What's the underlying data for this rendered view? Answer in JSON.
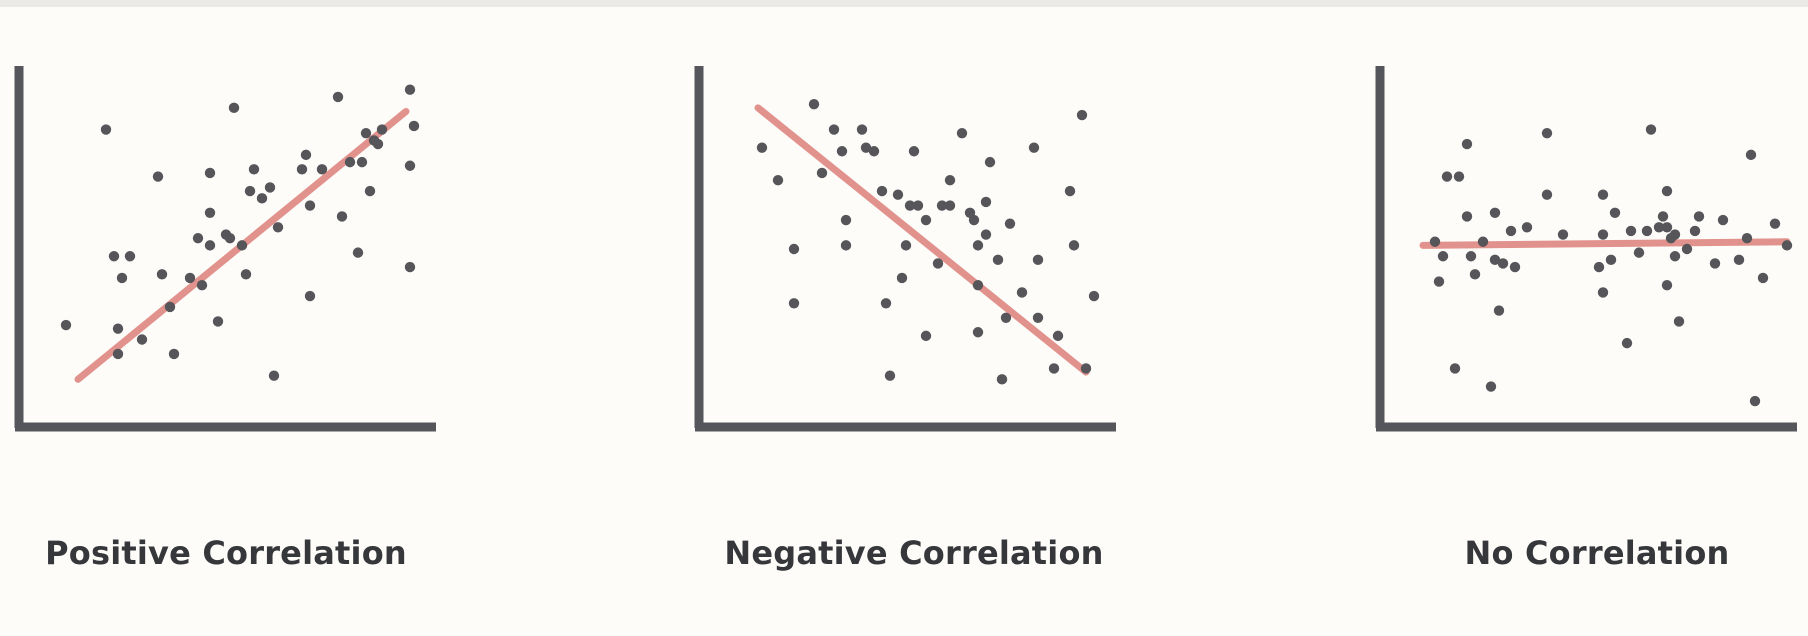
{
  "colors": {
    "axis": "#55565c",
    "point": "#56565a",
    "trend": "#dd8079",
    "background": "#fdfcf9"
  },
  "chart_data": [
    {
      "type": "scatter",
      "title": "Positive Correlation",
      "xlabel": "",
      "ylabel": "",
      "xlim": [
        0,
        100
      ],
      "ylim": [
        0,
        100
      ],
      "grid": false,
      "trend_line": {
        "from": [
          11,
          14
        ],
        "to": [
          93,
          88
        ]
      },
      "points": [
        [
          8,
          29
        ],
        [
          18,
          83
        ],
        [
          20,
          48
        ],
        [
          21,
          28
        ],
        [
          21,
          21
        ],
        [
          22,
          42
        ],
        [
          24,
          48
        ],
        [
          27,
          25
        ],
        [
          31,
          70
        ],
        [
          32,
          43
        ],
        [
          34,
          34
        ],
        [
          35,
          21
        ],
        [
          39,
          42
        ],
        [
          41,
          53
        ],
        [
          42,
          40
        ],
        [
          44,
          60
        ],
        [
          44,
          71
        ],
        [
          44,
          51
        ],
        [
          46,
          30
        ],
        [
          48,
          54
        ],
        [
          49,
          53
        ],
        [
          50,
          89
        ],
        [
          52,
          51
        ],
        [
          53,
          43
        ],
        [
          54,
          66
        ],
        [
          55,
          72
        ],
        [
          57,
          64
        ],
        [
          59,
          67
        ],
        [
          60,
          15
        ],
        [
          61,
          56
        ],
        [
          67,
          72
        ],
        [
          68,
          76
        ],
        [
          69,
          37
        ],
        [
          69,
          62
        ],
        [
          72,
          72
        ],
        [
          76,
          92
        ],
        [
          77,
          59
        ],
        [
          79,
          74
        ],
        [
          81,
          49
        ],
        [
          82,
          74
        ],
        [
          83,
          82
        ],
        [
          84,
          66
        ],
        [
          85,
          80
        ],
        [
          86,
          79
        ],
        [
          87,
          83
        ],
        [
          94,
          73
        ],
        [
          94,
          45
        ],
        [
          94,
          94
        ],
        [
          95,
          84
        ]
      ]
    },
    {
      "type": "scatter",
      "title": "Negative Correlation",
      "xlabel": "",
      "ylabel": "",
      "xlim": [
        0,
        100
      ],
      "ylim": [
        0,
        100
      ],
      "grid": false,
      "trend_line": {
        "from": [
          11,
          89
        ],
        "to": [
          93,
          16
        ]
      },
      "points": [
        [
          12,
          78
        ],
        [
          16,
          69
        ],
        [
          20,
          50
        ],
        [
          20,
          35
        ],
        [
          25,
          90
        ],
        [
          27,
          71
        ],
        [
          30,
          83
        ],
        [
          32,
          77
        ],
        [
          33,
          58
        ],
        [
          33,
          51
        ],
        [
          37,
          83
        ],
        [
          38,
          78
        ],
        [
          40,
          77
        ],
        [
          42,
          66
        ],
        [
          43,
          35
        ],
        [
          44,
          15
        ],
        [
          46,
          65
        ],
        [
          47,
          42
        ],
        [
          48,
          51
        ],
        [
          49,
          62
        ],
        [
          50,
          77
        ],
        [
          51,
          62
        ],
        [
          53,
          58
        ],
        [
          53,
          26
        ],
        [
          56,
          46
        ],
        [
          57,
          62
        ],
        [
          59,
          69
        ],
        [
          59,
          62
        ],
        [
          62,
          82
        ],
        [
          64,
          60
        ],
        [
          65,
          58
        ],
        [
          66,
          27
        ],
        [
          66,
          40
        ],
        [
          66,
          51
        ],
        [
          68,
          54
        ],
        [
          68,
          63
        ],
        [
          69,
          74
        ],
        [
          71,
          47
        ],
        [
          72,
          14
        ],
        [
          73,
          31
        ],
        [
          74,
          57
        ],
        [
          77,
          38
        ],
        [
          80,
          78
        ],
        [
          81,
          47
        ],
        [
          81,
          31
        ],
        [
          85,
          17
        ],
        [
          86,
          26
        ],
        [
          89,
          66
        ],
        [
          90,
          51
        ],
        [
          92,
          87
        ],
        [
          93,
          17
        ],
        [
          95,
          37
        ]
      ]
    },
    {
      "type": "scatter",
      "title": "No Correlation",
      "xlabel": "",
      "ylabel": "",
      "xlim": [
        0,
        100
      ],
      "ylim": [
        0,
        100
      ],
      "grid": false,
      "trend_line": {
        "from": [
          7,
          51
        ],
        "to": [
          98,
          52
        ]
      },
      "points": [
        [
          10,
          52
        ],
        [
          11,
          41
        ],
        [
          12,
          48
        ],
        [
          13,
          70
        ],
        [
          15,
          17
        ],
        [
          16,
          70
        ],
        [
          18,
          59
        ],
        [
          18,
          79
        ],
        [
          19,
          48
        ],
        [
          20,
          43
        ],
        [
          22,
          52
        ],
        [
          24,
          12
        ],
        [
          25,
          47
        ],
        [
          25,
          60
        ],
        [
          26,
          33
        ],
        [
          27,
          46
        ],
        [
          29,
          55
        ],
        [
          30,
          45
        ],
        [
          33,
          56
        ],
        [
          38,
          82
        ],
        [
          38,
          65
        ],
        [
          42,
          54
        ],
        [
          51,
          45
        ],
        [
          52,
          65
        ],
        [
          52,
          38
        ],
        [
          52,
          54
        ],
        [
          54,
          47
        ],
        [
          55,
          60
        ],
        [
          58,
          24
        ],
        [
          59,
          55
        ],
        [
          61,
          49
        ],
        [
          63,
          55
        ],
        [
          64,
          83
        ],
        [
          66,
          56
        ],
        [
          67,
          59
        ],
        [
          68,
          66
        ],
        [
          68,
          56
        ],
        [
          68,
          40
        ],
        [
          69,
          53
        ],
        [
          70,
          48
        ],
        [
          70,
          54
        ],
        [
          71,
          30
        ],
        [
          73,
          50
        ],
        [
          75,
          55
        ],
        [
          76,
          59
        ],
        [
          80,
          46
        ],
        [
          82,
          58
        ],
        [
          86,
          47
        ],
        [
          88,
          53
        ],
        [
          89,
          76
        ],
        [
          90,
          8
        ],
        [
          92,
          42
        ],
        [
          95,
          57
        ],
        [
          98,
          51
        ]
      ]
    }
  ]
}
